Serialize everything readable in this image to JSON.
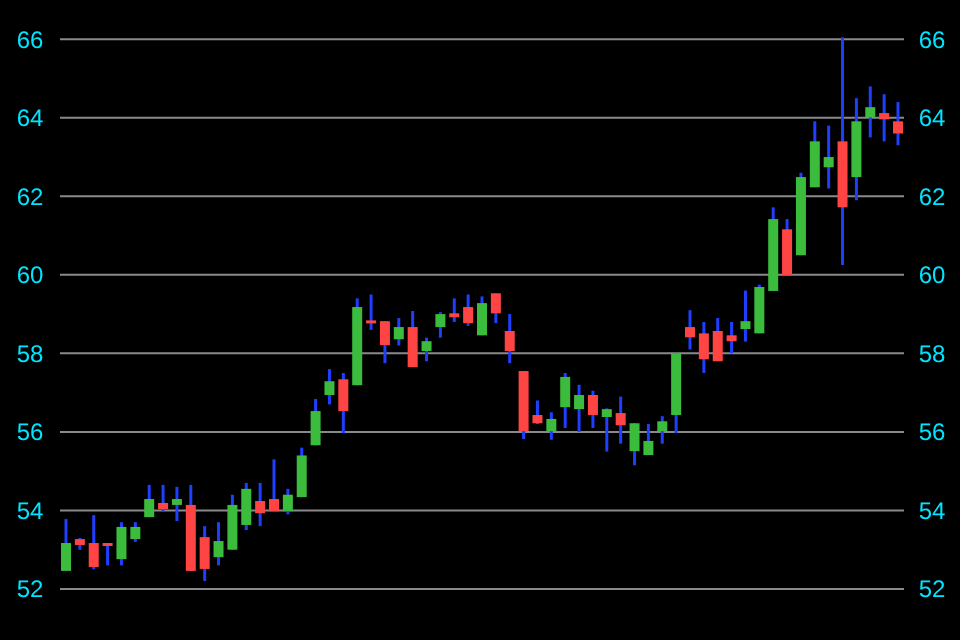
{
  "chart_data": {
    "type": "candlestick",
    "categories": [
      null,
      null,
      null,
      null,
      null,
      null,
      null,
      null,
      null,
      null,
      null,
      null,
      null,
      null,
      null,
      null,
      null,
      null,
      null,
      null,
      null,
      null,
      null,
      null,
      null,
      null,
      null,
      null,
      null,
      null,
      null,
      null,
      null,
      null,
      null,
      null,
      null,
      null,
      null,
      null,
      null,
      null,
      null,
      null,
      null,
      null,
      null,
      null,
      null,
      null,
      null,
      null,
      null,
      null,
      null,
      null,
      null,
      null,
      null,
      null,
      null
    ],
    "ohlc": [
      [
        52.46,
        53.78,
        52.46,
        53.17
      ],
      [
        53.27,
        53.3,
        53.0,
        53.12
      ],
      [
        53.17,
        53.88,
        52.5,
        52.56
      ],
      [
        53.17,
        53.17,
        52.6,
        53.15
      ],
      [
        52.76,
        53.7,
        52.6,
        53.58
      ],
      [
        53.27,
        53.7,
        53.2,
        53.58
      ],
      [
        53.83,
        54.65,
        53.83,
        54.29
      ],
      [
        54.19,
        54.65,
        53.98,
        54.03
      ],
      [
        54.14,
        54.6,
        53.73,
        54.29
      ],
      [
        54.14,
        54.65,
        52.46,
        52.46
      ],
      [
        53.32,
        53.6,
        52.2,
        52.51
      ],
      [
        52.81,
        53.7,
        52.6,
        53.22
      ],
      [
        53.0,
        54.4,
        53.0,
        54.14
      ],
      [
        53.63,
        54.7,
        53.5,
        54.55
      ],
      [
        54.24,
        54.7,
        53.6,
        53.93
      ],
      [
        54.29,
        55.3,
        53.98,
        53.98
      ],
      [
        53.98,
        54.55,
        53.9,
        54.4
      ],
      [
        54.34,
        55.6,
        54.34,
        55.4
      ],
      [
        55.66,
        56.84,
        55.66,
        56.53
      ],
      [
        56.94,
        57.6,
        56.7,
        57.29
      ],
      [
        57.34,
        57.5,
        55.97,
        56.53
      ],
      [
        57.19,
        59.4,
        57.19,
        59.18
      ],
      [
        58.84,
        59.5,
        58.6,
        58.82
      ],
      [
        58.82,
        58.82,
        57.75,
        58.21
      ],
      [
        58.36,
        58.9,
        58.2,
        58.67
      ],
      [
        58.67,
        59.08,
        57.65,
        57.65
      ],
      [
        58.06,
        58.4,
        57.8,
        58.31
      ],
      [
        58.67,
        59.05,
        58.4,
        59.0
      ],
      [
        59.02,
        59.4,
        58.8,
        58.92
      ],
      [
        59.18,
        59.5,
        58.7,
        58.77
      ],
      [
        58.46,
        59.45,
        58.46,
        59.28
      ],
      [
        59.53,
        59.53,
        58.77,
        59.02
      ],
      [
        58.57,
        59.0,
        57.75,
        58.06
      ],
      [
        57.55,
        57.55,
        55.82,
        56.02
      ],
      [
        56.43,
        56.8,
        56.2,
        56.22
      ],
      [
        56.02,
        56.5,
        55.8,
        56.33
      ],
      [
        56.63,
        57.5,
        56.1,
        57.4
      ],
      [
        56.58,
        57.2,
        56.0,
        56.94
      ],
      [
        56.94,
        57.05,
        56.1,
        56.43
      ],
      [
        56.38,
        56.6,
        55.5,
        56.58
      ],
      [
        56.48,
        56.9,
        55.7,
        56.17
      ],
      [
        55.51,
        56.22,
        55.15,
        56.22
      ],
      [
        55.41,
        56.2,
        55.41,
        55.77
      ],
      [
        56.02,
        56.4,
        55.7,
        56.27
      ],
      [
        56.43,
        58.0,
        55.97,
        58.0
      ],
      [
        58.67,
        59.1,
        58.1,
        58.41
      ],
      [
        58.51,
        58.8,
        57.5,
        57.85
      ],
      [
        58.57,
        58.9,
        57.8,
        57.8
      ],
      [
        58.46,
        58.8,
        58.0,
        58.31
      ],
      [
        58.62,
        59.6,
        58.3,
        58.82
      ],
      [
        58.51,
        59.75,
        58.51,
        59.69
      ],
      [
        59.59,
        61.72,
        59.59,
        61.42
      ],
      [
        61.16,
        61.42,
        59.99,
        59.99
      ],
      [
        60.5,
        62.6,
        60.5,
        62.49
      ],
      [
        62.23,
        63.91,
        62.23,
        63.4
      ],
      [
        62.74,
        63.8,
        62.2,
        63.0
      ],
      [
        63.4,
        66.05,
        60.25,
        61.72
      ],
      [
        62.49,
        64.5,
        61.9,
        63.91
      ],
      [
        64.01,
        64.8,
        63.5,
        64.27
      ],
      [
        64.12,
        64.6,
        63.4,
        63.96
      ],
      [
        63.91,
        64.4,
        63.3,
        63.6
      ]
    ],
    "ylim": [
      50.7,
      67
    ],
    "yticks": [
      52,
      54,
      56,
      58,
      60,
      62,
      64,
      66
    ],
    "y2lim": [
      50.7,
      67
    ],
    "y2ticks": [
      52,
      54,
      56,
      58,
      60,
      62,
      64,
      66
    ],
    "grid": "y"
  }
}
